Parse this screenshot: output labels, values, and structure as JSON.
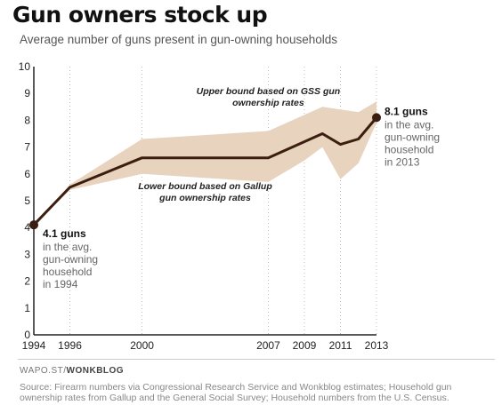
{
  "header": {
    "title": "Gun owners stock up",
    "subtitle": "Average number of guns present in gun-owning households"
  },
  "footer": {
    "credit_prefix": "WAPO.ST/",
    "credit_brand": "WONKBLOG",
    "source": "Source: Firearm numbers via Congressional Research Service and Wonkblog estimates; Household gun ownership rates from Gallup and the General Social Survey; Household numbers from the U.S. Census."
  },
  "chart_data": {
    "type": "line",
    "title": "Gun owners stock up",
    "subtitle": "Average number of guns present in gun-owning households",
    "xlabel": "",
    "ylabel": "",
    "xlim": [
      1994,
      2013
    ],
    "ylim": [
      0,
      10
    ],
    "x_ticks": [
      1994,
      1996,
      2000,
      2007,
      2009,
      2011,
      2013
    ],
    "y_ticks": [
      0,
      1,
      2,
      3,
      4,
      5,
      6,
      7,
      8,
      9,
      10
    ],
    "grid": "vertical dotted",
    "colors": {
      "line": "#3b1e0f",
      "band": "#e8d3bf",
      "grid": "#bbbbbb"
    },
    "series": [
      {
        "x": [
          1994,
          1996,
          2000,
          2007,
          2010,
          2011,
          2012,
          2013
        ],
        "values": [
          4.1,
          5.5,
          6.6,
          6.6,
          7.5,
          7.1,
          7.3,
          8.1
        ]
      }
    ],
    "band": {
      "x": [
        1994,
        1996,
        2000,
        2007,
        2009,
        2010,
        2011,
        2012,
        2013
      ],
      "upper": [
        4.1,
        5.6,
        7.3,
        7.6,
        8.2,
        8.5,
        8.4,
        8.3,
        8.7
      ],
      "lower": [
        4.1,
        5.4,
        6.0,
        5.7,
        6.5,
        7.0,
        5.8,
        6.4,
        7.9
      ]
    },
    "annotations": {
      "start_value": "4.1 guns",
      "start_text": [
        "in the avg.",
        "gun-owning",
        "household",
        "in 1994"
      ],
      "end_value": "8.1 guns",
      "end_text": [
        "in the avg.",
        "gun-owning",
        "household",
        "in 2013"
      ],
      "upper_note": [
        "Upper bound based on GSS gun",
        "ownership rates"
      ],
      "lower_note": [
        "Lower bound based on Gallup",
        "gun ownership rates"
      ]
    }
  }
}
